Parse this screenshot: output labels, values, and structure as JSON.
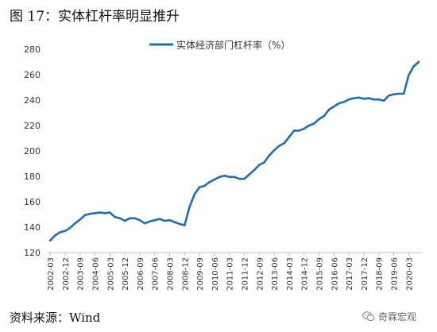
{
  "page": {
    "figure_title": "图 17：实体杠杆率明显推升",
    "source": "资料来源：Wind",
    "watermark": "奇霖宏观",
    "watermark_icon": "wechat-icon",
    "line_color": "#1f6db5"
  },
  "chart_data": {
    "type": "line",
    "title": "",
    "xlabel": "",
    "ylabel": "",
    "ylim": [
      120,
      280
    ],
    "yticks": [
      120,
      140,
      160,
      180,
      200,
      220,
      240,
      260,
      280
    ],
    "grid": false,
    "legend_position": "top-center",
    "xtick_labels": [
      "2002-03",
      "2002-12",
      "2003-09",
      "2004-06",
      "2005-03",
      "2005-12",
      "2006-09",
      "2007-06",
      "2008-03",
      "2008-12",
      "2009-09",
      "2010-06",
      "2011-03",
      "2011-12",
      "2012-09",
      "2013-06",
      "2014-03",
      "2014-12",
      "2015-09",
      "2016-06",
      "2017-03",
      "2017-12",
      "2018-09",
      "2019-06",
      "2020-03"
    ],
    "series": [
      {
        "name": "实体经济部门杠杆率（%）",
        "x": [
          "2002-03",
          "2002-06",
          "2002-09",
          "2002-12",
          "2003-03",
          "2003-06",
          "2003-09",
          "2003-12",
          "2004-03",
          "2004-06",
          "2004-09",
          "2004-12",
          "2005-03",
          "2005-06",
          "2005-09",
          "2005-12",
          "2006-03",
          "2006-06",
          "2006-09",
          "2006-12",
          "2007-03",
          "2007-06",
          "2007-09",
          "2007-12",
          "2008-03",
          "2008-06",
          "2008-09",
          "2008-12",
          "2009-03",
          "2009-06",
          "2009-09",
          "2009-12",
          "2010-03",
          "2010-06",
          "2010-09",
          "2010-12",
          "2011-03",
          "2011-06",
          "2011-09",
          "2011-12",
          "2012-03",
          "2012-06",
          "2012-09",
          "2012-12",
          "2013-03",
          "2013-06",
          "2013-09",
          "2013-12",
          "2014-03",
          "2014-06",
          "2014-09",
          "2014-12",
          "2015-03",
          "2015-06",
          "2015-09",
          "2015-12",
          "2016-03",
          "2016-06",
          "2016-09",
          "2016-12",
          "2017-03",
          "2017-06",
          "2017-09",
          "2017-12",
          "2018-03",
          "2018-06",
          "2018-09",
          "2018-12",
          "2019-03",
          "2019-06",
          "2019-09",
          "2019-12",
          "2020-03",
          "2020-06",
          "2020-09"
        ],
        "values": [
          129.5,
          133.5,
          136.0,
          137.0,
          139.5,
          143.0,
          146.0,
          149.5,
          150.5,
          151.0,
          151.5,
          151.0,
          151.5,
          148.0,
          147.0,
          145.0,
          147.0,
          147.0,
          145.5,
          143.0,
          144.5,
          145.5,
          146.5,
          145.0,
          145.5,
          144.0,
          142.5,
          141.5,
          156.0,
          166.0,
          171.5,
          172.5,
          175.5,
          177.5,
          179.5,
          180.5,
          179.5,
          179.5,
          178.0,
          178.0,
          181.5,
          185.0,
          189.0,
          191.0,
          196.5,
          200.5,
          204.0,
          206.0,
          211.0,
          216.0,
          216.0,
          217.5,
          220.0,
          221.5,
          225.0,
          227.5,
          232.5,
          235.0,
          237.5,
          238.5,
          240.5,
          241.5,
          242.0,
          241.0,
          241.5,
          240.5,
          240.5,
          239.5,
          243.5,
          244.5,
          245.0,
          245.0,
          259.5,
          266.5,
          270.0
        ]
      }
    ]
  }
}
